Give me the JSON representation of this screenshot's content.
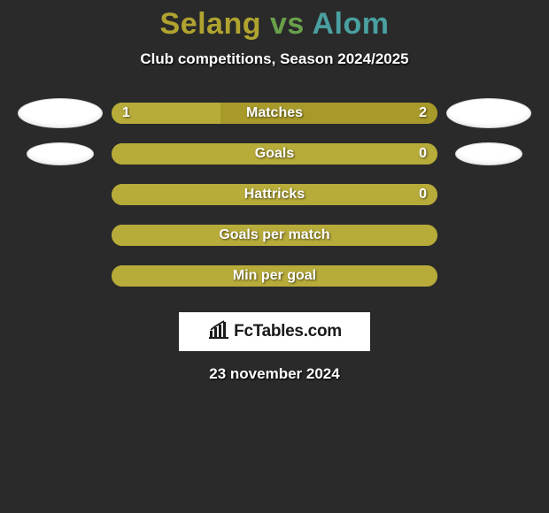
{
  "background_color": "#2a2a2a",
  "title": {
    "player1": "Selang",
    "vs": "vs",
    "player2": "Alom",
    "player1_color": "#b0a32f",
    "vs_color": "#68a04a",
    "player2_color": "#4aa0a0",
    "fontsize": 34
  },
  "subtitle": "Club competitions, Season 2024/2025",
  "badges": {
    "left_large": {
      "width": 96,
      "height": 34
    },
    "left_small": {
      "width": 76,
      "height": 26
    },
    "right_large": {
      "width": 96,
      "height": 34
    },
    "right_small": {
      "width": 76,
      "height": 26
    }
  },
  "bars": {
    "track_bg": "#a89a2a",
    "player1_fill": "#b7ab3a",
    "player2_fill": "#a89a2a",
    "radius": 12,
    "label_color": "#ffffff",
    "label_fontsize": 16,
    "rows": [
      {
        "label": "Matches",
        "left": "1",
        "right": "2",
        "left_pct": 33.3,
        "right_pct": 66.7,
        "show_left_badge": "large",
        "show_right_badge": "large"
      },
      {
        "label": "Goals",
        "left": "",
        "right": "0",
        "left_pct": 100,
        "right_pct": 0,
        "show_left_badge": "small",
        "show_right_badge": "small"
      },
      {
        "label": "Hattricks",
        "left": "",
        "right": "0",
        "left_pct": 100,
        "right_pct": 0,
        "show_left_badge": "",
        "show_right_badge": ""
      },
      {
        "label": "Goals per match",
        "left": "",
        "right": "",
        "left_pct": 100,
        "right_pct": 0,
        "show_left_badge": "",
        "show_right_badge": ""
      },
      {
        "label": "Min per goal",
        "left": "",
        "right": "",
        "left_pct": 100,
        "right_pct": 0,
        "show_left_badge": "",
        "show_right_badge": ""
      }
    ]
  },
  "logo": {
    "text": "FcTables.com",
    "bg": "#ffffff",
    "text_color": "#1a1a1a"
  },
  "date": "23 november 2024"
}
